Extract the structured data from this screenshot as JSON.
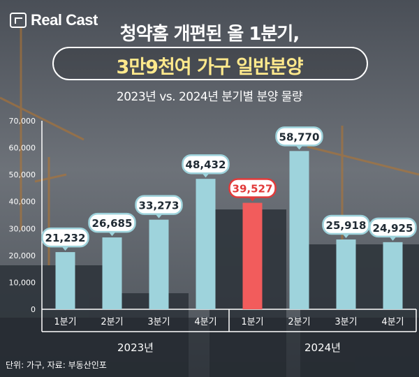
{
  "brand": {
    "logo_text": "Real Cast"
  },
  "header": {
    "title_line1": "청약홈 개편된 올 1분기,",
    "title_line2": "3만9천여 가구 일반분양",
    "subtitle": "2023년 vs. 2024년 분기별 분양 물량"
  },
  "footer": {
    "source": "단위: 가구, 자료: 부동산인포"
  },
  "colors": {
    "normal_bar": "#9ed3dc",
    "highlight_bar": "#f25c5c",
    "highlight_label": "#e23a3a"
  },
  "chart_data": {
    "type": "bar",
    "title": "2023년 vs. 2024년 분기별 분양 물량",
    "ylim": [
      0,
      70000
    ],
    "yticks": [
      "0",
      "10,000",
      "20,000",
      "30,000",
      "40,000",
      "50,000",
      "60,000",
      "70,000"
    ],
    "categories": [
      "1분기",
      "2분기",
      "3분기",
      "4분기",
      "1분기",
      "2분기",
      "3분기",
      "4분기"
    ],
    "groups": [
      "2023년",
      "2024년"
    ],
    "group_sizes": [
      4,
      4
    ],
    "values": [
      21232,
      26685,
      33273,
      48432,
      39527,
      58770,
      25918,
      24925
    ],
    "value_labels": [
      "21,232",
      "26,685",
      "33,273",
      "48,432",
      "39,527",
      "58,770",
      "25,918",
      "24,925"
    ],
    "highlight_index": 4,
    "grid": false,
    "legend": "none"
  }
}
